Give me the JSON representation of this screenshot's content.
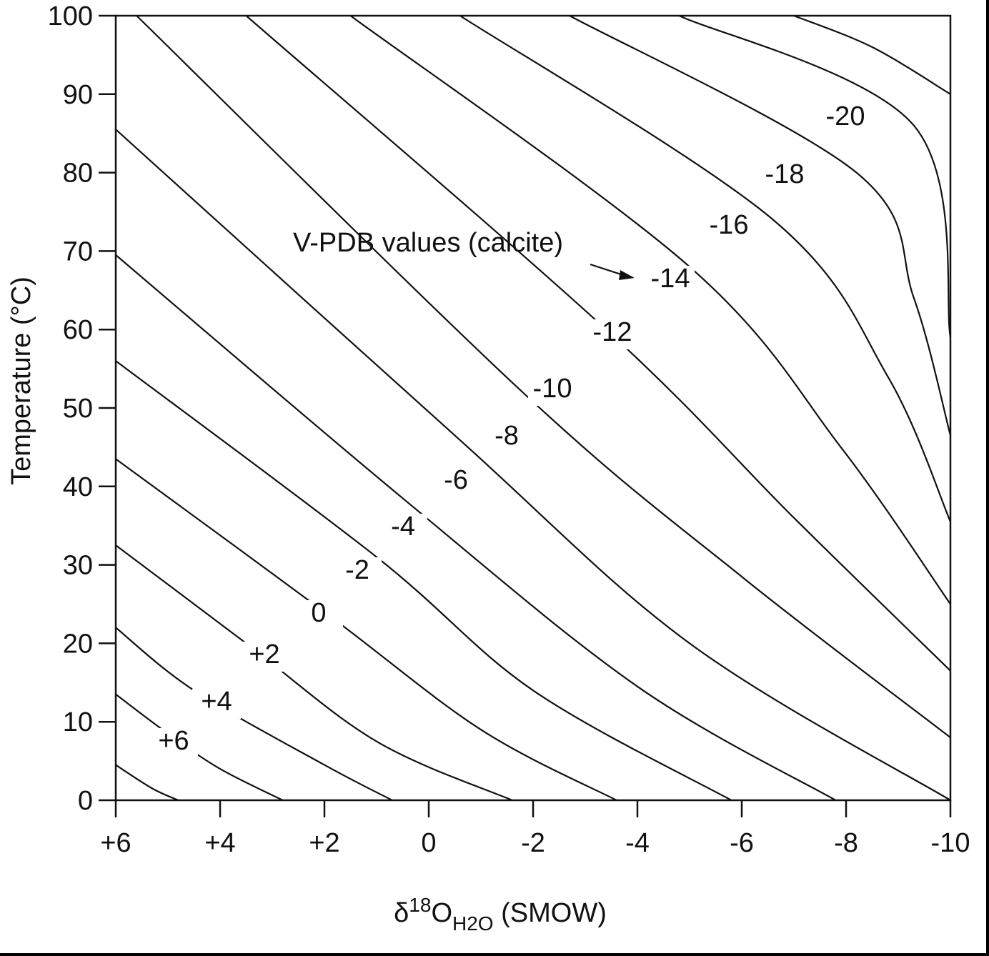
{
  "chart_data": {
    "type": "line",
    "subtype": "contour",
    "title": "",
    "xlabel": {
      "delta": "δ",
      "sup": "18",
      "main": "O",
      "sub": "H2O",
      "tail": " (SMOW)"
    },
    "ylabel": "Temperature (°C)",
    "xlim": [
      6,
      -10
    ],
    "ylim": [
      0,
      100
    ],
    "x_ticks": [
      6,
      4,
      2,
      0,
      -2,
      -4,
      -6,
      -8,
      -10
    ],
    "x_tick_labels": [
      "+6",
      "+4",
      "+2",
      "0",
      "-2",
      "-4",
      "-6",
      "-8",
      "-10"
    ],
    "y_ticks": [
      0,
      10,
      20,
      30,
      40,
      50,
      60,
      70,
      80,
      90,
      100
    ],
    "y_tick_labels": [
      "0",
      "10",
      "20",
      "30",
      "40",
      "50",
      "60",
      "70",
      "80",
      "90",
      "100"
    ],
    "grid": false,
    "annotation": {
      "text": "V-PDB values (calcite)",
      "points_to": "-14"
    },
    "series": [
      {
        "label": "+6",
        "points": [
          [
            6,
            4.5
          ],
          [
            5.3,
            1.5
          ],
          [
            4.8,
            0
          ]
        ]
      },
      {
        "label": "+4",
        "points": [
          [
            6,
            13.5
          ],
          [
            5,
            8.5
          ],
          [
            4,
            4
          ],
          [
            2.8,
            0
          ]
        ]
      },
      {
        "label": "+2",
        "points": [
          [
            6,
            22
          ],
          [
            4.5,
            14
          ],
          [
            2,
            4.5
          ],
          [
            0.7,
            0
          ]
        ]
      },
      {
        "label": "0",
        "points": [
          [
            6,
            32.5
          ],
          [
            3.5,
            20
          ],
          [
            1,
            7.5
          ],
          [
            -1.6,
            0
          ]
        ]
      },
      {
        "label": "-2",
        "points": [
          [
            6,
            43.5
          ],
          [
            2,
            24
          ],
          [
            -1,
            9
          ],
          [
            -3.6,
            0
          ]
        ]
      },
      {
        "label": "-4",
        "points": [
          [
            6,
            56
          ],
          [
            1,
            31
          ],
          [
            -2,
            14
          ],
          [
            -5.8,
            0
          ]
        ]
      },
      {
        "label": "-6",
        "points": [
          [
            6,
            69.5
          ],
          [
            0.5,
            38.5
          ],
          [
            -4,
            14.5
          ],
          [
            -7.8,
            0
          ]
        ]
      },
      {
        "label": "-8",
        "points": [
          [
            6,
            85.5
          ],
          [
            -0.5,
            46.5
          ],
          [
            -5,
            20
          ],
          [
            -10,
            0
          ]
        ]
      },
      {
        "label": "-10",
        "points": [
          [
            5.6,
            100
          ],
          [
            -1.8,
            52
          ],
          [
            -6,
            28.5
          ],
          [
            -10,
            8
          ]
        ]
      },
      {
        "label": "-12",
        "points": [
          [
            3.5,
            100
          ],
          [
            -3.4,
            60
          ],
          [
            -7,
            36
          ],
          [
            -10,
            16.5
          ]
        ]
      },
      {
        "label": "-14",
        "points": [
          [
            1.5,
            100
          ],
          [
            -5,
            68
          ],
          [
            -7.9,
            45
          ],
          [
            -10,
            25
          ]
        ]
      },
      {
        "label": "-16",
        "points": [
          [
            -0.6,
            100
          ],
          [
            -6.6,
            74
          ],
          [
            -8.8,
            54
          ],
          [
            -10,
            35.5
          ]
        ]
      },
      {
        "label": "-18",
        "points": [
          [
            -2.7,
            100
          ],
          [
            -8.2,
            80
          ],
          [
            -9.3,
            64
          ],
          [
            -10,
            46.5
          ]
        ]
      },
      {
        "label": "-20",
        "points": [
          [
            -4.8,
            100
          ],
          [
            -9.3,
            86
          ],
          [
            -10,
            59
          ]
        ]
      },
      {
        "label": "",
        "points": [
          [
            -7,
            100
          ],
          [
            -8.5,
            96
          ],
          [
            -10,
            90
          ]
        ]
      }
    ]
  }
}
